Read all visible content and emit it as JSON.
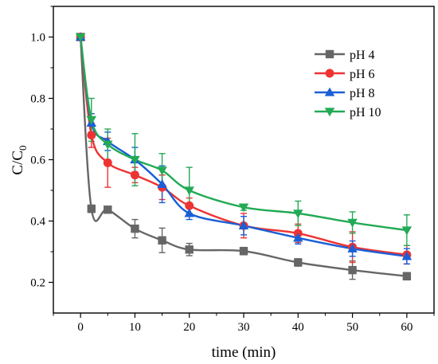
{
  "chart_data": {
    "type": "line",
    "xlabel": "time (min)",
    "ylabel": {
      "main": "C/C",
      "sub": "0"
    },
    "xlim": [
      -5,
      65
    ],
    "ylim": [
      0.1,
      1.1
    ],
    "xticks": [
      0,
      10,
      20,
      30,
      40,
      50,
      60
    ],
    "xtick_labels": [
      "0",
      "10",
      "20",
      "30",
      "40",
      "50",
      "60"
    ],
    "yticks": [
      0.2,
      0.4,
      0.6,
      0.8,
      1.0
    ],
    "ytick_labels": [
      "0.2",
      "0.4",
      "0.6",
      "0.8",
      "1.0"
    ],
    "legend_position": "top-right",
    "x": [
      0,
      2,
      5,
      10,
      15,
      20,
      30,
      40,
      50,
      60
    ],
    "series": [
      {
        "name": "pH 4",
        "color": "#666666",
        "marker": "square",
        "values": [
          1.0,
          0.44,
          0.437,
          0.375,
          0.337,
          0.307,
          0.302,
          0.265,
          0.24,
          0.22
        ],
        "errors": [
          0.0,
          0.012,
          0.01,
          0.03,
          0.04,
          0.02,
          0.012,
          0.012,
          0.03,
          0.012
        ]
      },
      {
        "name": "pH 6",
        "color": "#ee3333",
        "marker": "circle",
        "values": [
          1.0,
          0.68,
          0.59,
          0.55,
          0.51,
          0.45,
          0.385,
          0.36,
          0.315,
          0.29
        ],
        "errors": [
          0.0,
          0.04,
          0.08,
          0.025,
          0.04,
          0.025,
          0.04,
          0.03,
          0.05,
          0.03
        ]
      },
      {
        "name": "pH 8",
        "color": "#1a5fd6",
        "marker": "triangle-up",
        "values": [
          1.0,
          0.72,
          0.66,
          0.6,
          0.52,
          0.425,
          0.385,
          0.345,
          0.31,
          0.285
        ],
        "errors": [
          0.0,
          0.03,
          0.03,
          0.04,
          0.06,
          0.02,
          0.03,
          0.02,
          0.025,
          0.025
        ]
      },
      {
        "name": "pH 10",
        "color": "#22aa55",
        "marker": "triangle-down",
        "values": [
          1.0,
          0.73,
          0.65,
          0.6,
          0.565,
          0.5,
          0.445,
          0.425,
          0.395,
          0.37
        ],
        "errors": [
          0.0,
          0.07,
          0.05,
          0.085,
          0.055,
          0.075,
          0.01,
          0.04,
          0.035,
          0.05
        ]
      }
    ]
  }
}
